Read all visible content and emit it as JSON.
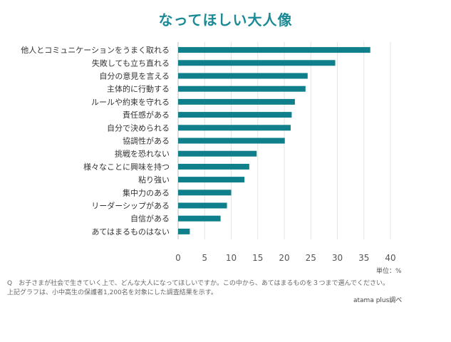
{
  "chart_data": {
    "type": "bar",
    "orientation": "horizontal",
    "title": "なってほしい大人像",
    "categories": [
      "他人とコミュニケーションをうまく取れる",
      "失敗しても立ち直れる",
      "自分の意見を言える",
      "主体的に行動する",
      "ルールや約束を守れる",
      "責任感がある",
      "自分で決められる",
      "協調性がある",
      "挑戦を恐れない",
      "様々なことに興味を持つ",
      "粘り強い",
      "集中力のある",
      "リーダーシップがある",
      "自信がある",
      "あてはまるものはない"
    ],
    "values": [
      36.2,
      29.6,
      24.4,
      24.0,
      22.0,
      21.4,
      21.2,
      20.1,
      14.8,
      13.4,
      12.5,
      10.0,
      9.2,
      8.0,
      2.2
    ],
    "xlim": [
      0,
      40
    ],
    "xticks": [
      "0",
      "5",
      "10",
      "15",
      "20",
      "25",
      "30",
      "35",
      "40"
    ],
    "grid": true,
    "bar_color": "#0e7f8b",
    "unit": "単位：%"
  },
  "footnote_lines": [
    "Q　お子さまが社会で生きていく上で、どんな大人になってほしいですか。この中から、あてはまるものを３つまで選んでください。",
    "上記グラフは、小中高生の保護者1,200名を対象にした調査結果を示す。"
  ],
  "source": "atama plus調べ",
  "colors": {
    "title": "#1a8a96",
    "bar": "#0e7f8b",
    "grid": "#e3e3e3"
  }
}
